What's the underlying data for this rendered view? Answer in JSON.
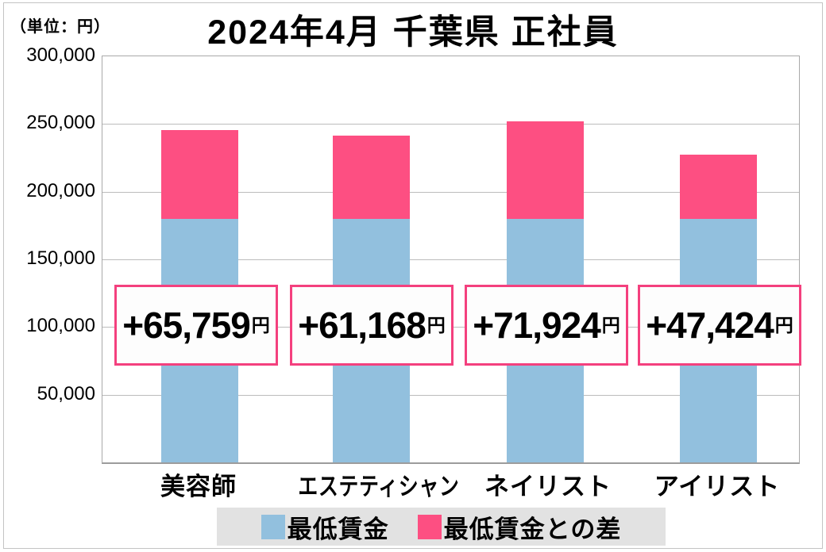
{
  "unit_label": "（単位：円）",
  "title": "2024年4月 千葉県 正社員",
  "chart_data": {
    "type": "bar",
    "stacked": true,
    "title": "2024年4月 千葉県 正社員",
    "unit": "円",
    "categories": [
      "美容師",
      "エステティシャン",
      "ネイリスト",
      "アイリスト"
    ],
    "series": [
      {
        "name": "最低賃金",
        "color": "#92c0de",
        "values": [
          180000,
          180000,
          180000,
          180000
        ]
      },
      {
        "name": "最低賃金との差",
        "color": "#fd4f82",
        "values": [
          65759,
          61168,
          71924,
          47424
        ]
      }
    ],
    "totals": [
      245759,
      241168,
      251924,
      227424
    ],
    "bar_labels": [
      "+65,759",
      "+61,168",
      "+71,924",
      "+47,424"
    ],
    "bar_label_suffix": "円",
    "ylim": [
      0,
      300000
    ],
    "yticks": [
      "300,000",
      "250,000",
      "200,000",
      "150,000",
      "100,000",
      "50,000"
    ],
    "ytick_values": [
      300000,
      250000,
      200000,
      150000,
      100000,
      50000
    ],
    "grid": true,
    "legend_position": "bottom"
  },
  "legend": {
    "items": [
      {
        "label": "最低賃金",
        "color": "#92c0de"
      },
      {
        "label": "最低賃金との差",
        "color": "#fd4f82"
      }
    ],
    "background": "#e2e2e2"
  },
  "colors": {
    "minimum_wage_blue": "#92c0de",
    "difference_pink": "#fd4f82",
    "box_border_pink": "#f4407e",
    "gridline_gray": "#bcbcbc"
  }
}
